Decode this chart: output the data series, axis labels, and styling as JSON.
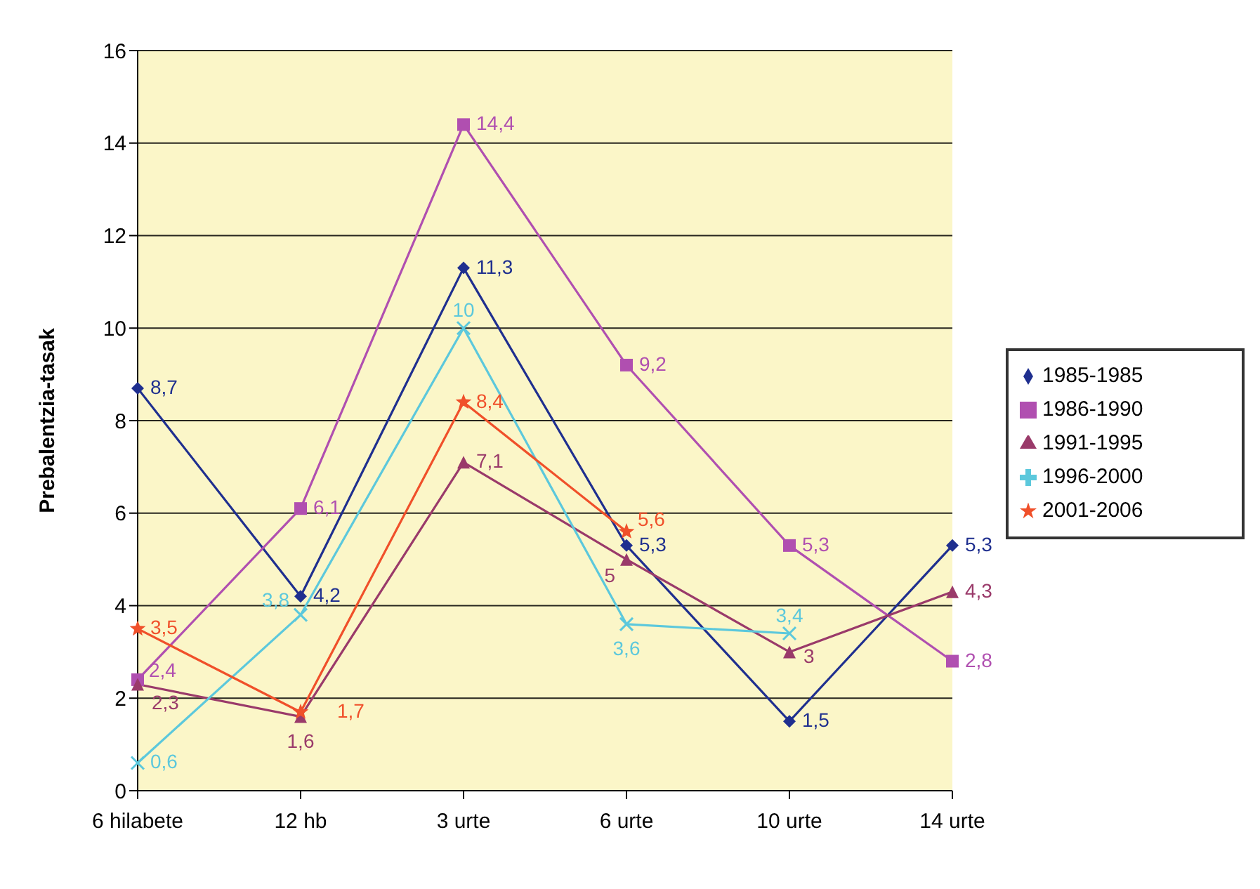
{
  "chart_data": {
    "type": "line",
    "ylabel": "Prebalentzia-tasak",
    "categories": [
      "6 hilabete",
      "12 hb",
      "3 urte",
      "6 urte",
      "10 urte",
      "14 urte"
    ],
    "series": [
      {
        "name": "1985-1985",
        "color": "#1f2f8f",
        "marker": "diamond",
        "values": [
          8.7,
          4.2,
          11.3,
          5.3,
          1.5,
          5.3
        ],
        "value_labels": [
          "8,7",
          "4,2",
          "11,3",
          "5,3",
          "1,5",
          "5,3"
        ]
      },
      {
        "name": "1986-1990",
        "color": "#b04fb0",
        "marker": "square",
        "values": [
          2.4,
          6.1,
          14.4,
          9.2,
          5.3,
          2.8
        ],
        "value_labels": [
          "2,4",
          "6,1",
          "14,4",
          "9,2",
          "5,3",
          "2,8"
        ]
      },
      {
        "name": "1991-1995",
        "color": "#9a3a6a",
        "marker": "triangle",
        "values": [
          2.3,
          1.6,
          7.1,
          5,
          3,
          4.3
        ],
        "value_labels": [
          "2,3",
          "1,6",
          "7,1",
          "5",
          "3",
          "4,3"
        ]
      },
      {
        "name": "1996-2000",
        "color": "#5cc8dc",
        "marker": "cross",
        "values": [
          0.6,
          3.8,
          10,
          3.6,
          3.4,
          null
        ],
        "value_labels": [
          "0,6",
          "3,8",
          "10",
          "3,6",
          "3,4",
          null
        ]
      },
      {
        "name": "2001-2006",
        "color": "#f0502a",
        "marker": "star",
        "values": [
          3.5,
          1.7,
          8.4,
          5.6,
          null,
          null
        ],
        "value_labels": [
          "3,5",
          "1,7",
          "8,4",
          "5,6",
          null,
          null
        ]
      }
    ],
    "ylim": [
      0,
      16
    ],
    "yticks": [
      0,
      2,
      4,
      6,
      8,
      10,
      12,
      14,
      16
    ],
    "grid": "y",
    "legend": "right"
  }
}
